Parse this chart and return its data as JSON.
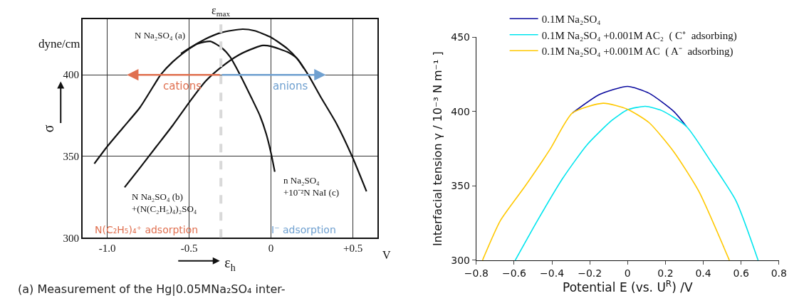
{
  "chart_data": [
    {
      "type": "line",
      "xlabel": "ε$_{h}$",
      "ylabel": "σ",
      "legend": false,
      "grid": true,
      "xlim": [
        -1.15,
        0.65
      ],
      "xticks": [
        {
          "value": -1.0,
          "label": "-1.0"
        },
        {
          "value": -0.5,
          "label": "-0.5"
        },
        0,
        {
          "value": 0.5,
          "label": "+0.5"
        }
      ],
      "ylim": [
        300,
        434
      ],
      "yticks": [
        300,
        350,
        400
      ],
      "series": [
        {
          "name": "N Na₂SO₄ (a)",
          "color": "#111111",
          "x": [
            -1.079,
            -1.0,
            -0.9,
            -0.8,
            -0.7,
            -0.674,
            -0.6,
            -0.5,
            -0.4,
            -0.3,
            -0.174,
            -0.1,
            0,
            0.1,
            0.159,
            0.227,
            0.3,
            0.4,
            0.495,
            0.583
          ],
          "values": [
            345.5,
            356,
            368,
            380,
            396,
            400,
            408,
            416,
            422,
            426,
            428,
            427,
            423,
            416,
            410,
            400,
            387,
            370,
            350,
            328.5
          ]
        },
        {
          "name": "N Na₂SO₄ (b)\n+(N(C₂H₅)₄)₂SO₄",
          "color": "#111111",
          "x": [
            -0.894,
            -0.8,
            -0.7,
            -0.6,
            -0.5,
            -0.4,
            -0.3,
            -0.2,
            -0.1,
            -0.05,
            0,
            0.1,
            0.159,
            0.2
          ],
          "values": [
            331,
            343,
            356,
            369,
            383,
            396,
            405,
            412,
            416.5,
            418,
            417.5,
            414,
            410,
            404
          ]
        },
        {
          "name": "n Na₂SO₄\n+10⁻²N NaI (c)",
          "color": "#111111",
          "x": [
            -0.55,
            -0.45,
            -0.371,
            -0.3,
            -0.25,
            -0.189,
            -0.12,
            -0.068,
            -0.03,
            0,
            0.023
          ],
          "values": [
            413,
            419,
            420.5,
            416.5,
            411,
            400,
            386,
            375,
            364,
            352,
            340.5
          ]
        }
      ],
      "ref_lines": [
        {
          "axis": "x",
          "value": -0.306,
          "label": "ε$_{max}$",
          "color": "#d9d9d9",
          "line_style": "dashed"
        }
      ],
      "annotations": [
        "cations",
        "anions",
        "N(C₂H₅)₄⁺ adsorption",
        "I⁻ adsorption",
        "dyne/cm",
        "V",
        "(a) Measurement of the Hg|0.05MNa₂SO₄ inter-"
      ]
    },
    {
      "type": "line",
      "xlabel": "Potential E (vs. U$^{R}$) /V",
      "ylabel": "Interfacial tension γ / 10⁻³ N m⁻¹ ]",
      "legend": "top left",
      "grid": false,
      "xlim": [
        -0.8,
        0.8
      ],
      "xticks": [
        {
          "value": -0.8,
          "label": "−0.8"
        },
        {
          "value": -0.6,
          "label": "−0.6"
        },
        {
          "value": -0.4,
          "label": "−0.4"
        },
        {
          "value": -0.2,
          "label": "−0.2"
        },
        0,
        0.2,
        0.4,
        0.6,
        0.8
      ],
      "ylim": [
        300,
        450
      ],
      "yticks": [
        300,
        350,
        400,
        450
      ],
      "series": [
        {
          "name": "0.1M Na₂SO₄",
          "color": "#0a0a9e",
          "x": [
            -0.292,
            -0.148,
            0,
            0.114,
            0.245,
            0.311
          ],
          "values": [
            399,
            411.5,
            416.9,
            412.3,
            400,
            390
          ]
        },
        {
          "name": "0.1M Na₂SO₄ +0.001M AC₂  ( C⁺  adsorbing)",
          "color": "#00e5ee",
          "x": [
            -0.594,
            -0.476,
            -0.345,
            -0.214,
            -0.083,
            0,
            0.094,
            0.18,
            0.311,
            0.442,
            0.573,
            0.69
          ],
          "values": [
            300,
            326.8,
            354.7,
            377.7,
            394.1,
            401.2,
            403.5,
            400.7,
            390,
            366,
            340,
            300
          ]
        },
        {
          "name": "0.1M Na₂SO₄ +0.001M AC  ( A⁻  adsorbing)",
          "color": "#ffc800",
          "x": [
            -0.767,
            -0.672,
            -0.542,
            -0.41,
            -0.292,
            -0.129,
            0,
            0.114,
            0.245,
            0.376,
            0.538
          ],
          "values": [
            300,
            326.8,
            349.8,
            374.6,
            399,
            405.6,
            401.5,
            392.5,
            372.8,
            346.5,
            300
          ]
        }
      ]
    }
  ]
}
